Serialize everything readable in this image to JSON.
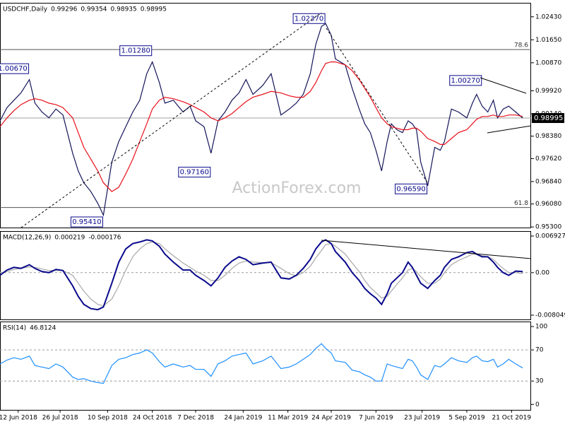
{
  "chart_data": [
    {
      "type": "line",
      "title": "USDCHF,Daily",
      "header_values": [
        0.99296,
        0.99354,
        0.98935,
        0.98995
      ],
      "watermark": "ActionForex.com",
      "xlim": [
        0,
        380
      ],
      "ylim": [
        0.9528,
        1.0288
      ],
      "yticks": [
        {
          "value": 1.0243,
          "label": "1.02430"
        },
        {
          "value": 1.0165,
          "label": "1.01650"
        },
        {
          "value": 1.0087,
          "label": "1.00870"
        },
        {
          "value": 0.9992,
          "label": "0.99920"
        },
        {
          "value": 0.9914,
          "label": "0.99140"
        },
        {
          "value": 0.9838,
          "label": "0.98380"
        },
        {
          "value": 0.9762,
          "label": "0.97620"
        },
        {
          "value": 0.9684,
          "label": "0.96840"
        },
        {
          "value": 0.9608,
          "label": "0.96080"
        },
        {
          "value": 0.953,
          "label": "0.95300"
        }
      ],
      "last_price": 0.98995,
      "fib_levels": [
        {
          "level": 78.6,
          "price": 1.0132
        },
        {
          "level": 61.8,
          "price": 0.9596
        }
      ],
      "annotations": [
        {
          "label": "1.00670",
          "value": 1.0067,
          "x": 21
        },
        {
          "label": "1.01280",
          "value": 1.0128,
          "x": 109
        },
        {
          "label": "1.02370",
          "value": 1.0237,
          "x": 233
        },
        {
          "label": "0.97160",
          "value": 0.9716,
          "x": 151
        },
        {
          "label": "0.95410",
          "value": 0.9541,
          "x": 74
        },
        {
          "label": "0.96590",
          "value": 0.9659,
          "x": 306
        },
        {
          "label": "1.00270",
          "value": 1.0027,
          "x": 345
        }
      ],
      "x": [
        0,
        5,
        10,
        15,
        21,
        25,
        30,
        35,
        40,
        45,
        52,
        56,
        60,
        65,
        70,
        74,
        80,
        85,
        90,
        95,
        100,
        105,
        109,
        114,
        118,
        124,
        131,
        136,
        140,
        146,
        151,
        156,
        161,
        166,
        171,
        176,
        181,
        188,
        194,
        201,
        207,
        212,
        217,
        222,
        226,
        230,
        233,
        237,
        240,
        247,
        252,
        257,
        261,
        265,
        269,
        273,
        277,
        280,
        284,
        288,
        292,
        295,
        298,
        301,
        306,
        311,
        315,
        318,
        323,
        328,
        334,
        338,
        341,
        345,
        349,
        353,
        356,
        360,
        364,
        369,
        374
      ],
      "series": [
        {
          "color": "#14145a",
          "values": [
            0.989,
            0.9935,
            0.996,
            0.9985,
            1.003,
            0.995,
            0.992,
            0.99,
            0.993,
            0.991,
            0.978,
            0.972,
            0.968,
            0.965,
            0.961,
            0.957,
            0.975,
            0.982,
            0.987,
            0.992,
            0.996,
            1.005,
            1.009,
            1.002,
            0.995,
            0.996,
            0.992,
            0.994,
            0.989,
            0.987,
            0.978,
            0.989,
            0.992,
            0.996,
            0.9985,
            1.003,
            0.998,
            1.001,
            1.005,
            0.991,
            0.993,
            0.995,
            0.998,
            1.005,
            1.015,
            1.021,
            1.022,
            1.018,
            1.01,
            1.008,
            1.0,
            0.993,
            0.988,
            0.985,
            0.979,
            0.972,
            0.982,
            0.988,
            0.986,
            0.985,
            0.989,
            0.988,
            0.986,
            0.975,
            0.967,
            0.98,
            0.979,
            0.982,
            0.993,
            0.992,
            0.99,
            0.995,
            0.998,
            0.994,
            0.992,
            0.996,
            0.99,
            0.993,
            0.994,
            0.992,
            0.98995
          ]
        },
        {
          "color": "#e8101a",
          "values": [
            0.987,
            0.99,
            0.9925,
            0.9945,
            0.996,
            0.9965,
            0.996,
            0.995,
            0.9945,
            0.9935,
            0.99,
            0.985,
            0.98,
            0.976,
            0.972,
            0.968,
            0.965,
            0.9665,
            0.971,
            0.976,
            0.982,
            0.988,
            0.993,
            0.996,
            0.997,
            0.9965,
            0.9955,
            0.9945,
            0.9935,
            0.992,
            0.99,
            0.989,
            0.99,
            0.9915,
            0.9935,
            0.9955,
            0.997,
            0.998,
            0.999,
            0.9985,
            0.9975,
            0.997,
            0.997,
            0.999,
            1.002,
            1.006,
            1.0085,
            1.009,
            1.009,
            1.008,
            1.006,
            1.003,
            1.0,
            0.997,
            0.9935,
            0.99,
            0.988,
            0.987,
            0.9865,
            0.986,
            0.986,
            0.9865,
            0.9865,
            0.9855,
            0.983,
            0.982,
            0.981,
            0.981,
            0.983,
            0.985,
            0.986,
            0.988,
            0.9895,
            0.9905,
            0.9905,
            0.991,
            0.9905,
            0.9905,
            0.991,
            0.991,
            0.9905
          ]
        }
      ]
    },
    {
      "type": "line",
      "title": "MACD(12,26,9)",
      "header_values": [
        0.000219,
        -0.000176
      ],
      "xlim": [
        0,
        380
      ],
      "ylim": [
        -0.00885,
        0.00773
      ],
      "yticks": [
        0.006927,
        {
          "value": 0,
          "label": "0.00"
        },
        -0.008049
      ],
      "levels": [
        0
      ],
      "x": [
        0,
        5,
        10,
        15,
        21,
        25,
        30,
        35,
        40,
        45,
        52,
        56,
        60,
        65,
        70,
        74,
        80,
        85,
        90,
        95,
        100,
        105,
        109,
        114,
        118,
        124,
        131,
        136,
        140,
        146,
        151,
        156,
        161,
        166,
        171,
        176,
        181,
        188,
        194,
        201,
        207,
        212,
        217,
        222,
        226,
        230,
        233,
        237,
        240,
        247,
        252,
        257,
        261,
        265,
        269,
        273,
        277,
        280,
        284,
        288,
        292,
        295,
        298,
        301,
        306,
        311,
        315,
        318,
        323,
        328,
        334,
        338,
        341,
        345,
        349,
        353,
        356,
        360,
        364,
        369,
        374
      ],
      "series": [
        {
          "color": "#a8a8a8",
          "values": [
            0.0,
            0.0002,
            0.0006,
            0.0008,
            0.0011,
            0.001,
            0.0007,
            0.0004,
            0.0004,
            0.0004,
            -0.0005,
            -0.002,
            -0.0035,
            -0.005,
            -0.006,
            -0.0063,
            -0.005,
            -0.0025,
            0.0005,
            0.003,
            0.0045,
            0.0055,
            0.0058,
            0.0055,
            0.0045,
            0.0032,
            0.0018,
            0.001,
            0.0003,
            -0.0005,
            -0.0015,
            -0.0015,
            -0.0005,
            0.0008,
            0.0018,
            0.0022,
            0.002,
            0.0019,
            0.0019,
            0.0008,
            -0.0002,
            -0.0006,
            0.0,
            0.0012,
            0.0028,
            0.0042,
            0.0053,
            0.0055,
            0.005,
            0.0035,
            0.0018,
            0.0002,
            -0.0015,
            -0.0028,
            -0.0038,
            -0.0048,
            -0.0045,
            -0.0035,
            -0.0022,
            -0.001,
            0.0005,
            0.0008,
            0.0002,
            -0.0008,
            -0.002,
            -0.002,
            -0.0012,
            0.0,
            0.0015,
            0.0023,
            0.003,
            0.0035,
            0.0035,
            0.0032,
            0.003,
            0.0025,
            0.0017,
            0.0008,
            0.0,
            0.0,
            -0.000176
          ]
        },
        {
          "color": "#0a0a8c",
          "values": [
            -0.0005,
            0.0005,
            0.001,
            0.0008,
            0.0015,
            0.0008,
            0.0002,
            0.0,
            0.0006,
            0.0004,
            -0.0025,
            -0.0045,
            -0.006,
            -0.0068,
            -0.007,
            -0.0065,
            -0.002,
            0.002,
            0.0045,
            0.0055,
            0.0058,
            0.0062,
            0.006,
            0.005,
            0.0035,
            0.002,
            0.0005,
            0.0005,
            -0.0005,
            -0.0015,
            -0.0025,
            -0.001,
            0.001,
            0.0022,
            0.003,
            0.0025,
            0.0015,
            0.0018,
            0.002,
            -0.001,
            -0.0012,
            -0.0005,
            0.0008,
            0.0025,
            0.0045,
            0.0058,
            0.0062,
            0.0055,
            0.004,
            0.002,
            0.0,
            -0.0015,
            -0.003,
            -0.004,
            -0.0048,
            -0.006,
            -0.004,
            -0.002,
            -0.001,
            0.0,
            0.002,
            0.001,
            -0.0005,
            -0.002,
            -0.003,
            -0.0015,
            -0.0005,
            0.001,
            0.0025,
            0.003,
            0.0038,
            0.004,
            0.0035,
            0.003,
            0.003,
            0.002,
            0.001,
            0.0,
            -0.0005,
            0.0003,
            0.000219
          ]
        }
      ]
    },
    {
      "type": "line",
      "title": "RSI(14)",
      "header_values": [
        46.8124
      ],
      "xlim": [
        0,
        380
      ],
      "ylim": [
        -7,
        105.5
      ],
      "yticks": [
        100,
        70,
        30,
        0
      ],
      "levels": [
        70,
        30
      ],
      "xticks": [
        {
          "value": 13,
          "label": "12 Jun 2018"
        },
        {
          "value": 43,
          "label": "26 Jul 2018"
        },
        {
          "value": 77,
          "label": "10 Sep 2018"
        },
        {
          "value": 109,
          "label": "24 Oct 2018"
        },
        {
          "value": 140,
          "label": "7 Dec 2018"
        },
        {
          "value": 174,
          "label": "24 Jan 2019"
        },
        {
          "value": 206,
          "label": "11 Mar 2019"
        },
        {
          "value": 237,
          "label": "24 Apr 2019"
        },
        {
          "value": 269,
          "label": "7 Jun 2019"
        },
        {
          "value": 302,
          "label": "23 Jul 2019"
        },
        {
          "value": 334,
          "label": "5 Sep 2019"
        },
        {
          "value": 366,
          "label": "21 Oct 2019"
        }
      ],
      "x": [
        0,
        5,
        10,
        15,
        21,
        25,
        30,
        35,
        40,
        45,
        52,
        56,
        60,
        65,
        70,
        74,
        80,
        85,
        90,
        95,
        100,
        105,
        109,
        114,
        118,
        124,
        131,
        136,
        140,
        146,
        151,
        156,
        161,
        166,
        171,
        176,
        181,
        188,
        194,
        201,
        207,
        212,
        217,
        222,
        226,
        230,
        233,
        237,
        240,
        247,
        252,
        257,
        261,
        265,
        269,
        273,
        277,
        280,
        284,
        288,
        292,
        295,
        298,
        301,
        306,
        311,
        315,
        318,
        323,
        328,
        334,
        338,
        341,
        345,
        349,
        353,
        356,
        360,
        364,
        369,
        374
      ],
      "series": [
        {
          "color": "#1e90ff",
          "values": [
            52,
            57,
            60,
            58,
            62,
            50,
            48,
            46,
            52,
            48,
            35,
            32,
            33,
            30,
            28,
            27,
            50,
            58,
            60,
            64,
            66,
            70,
            66,
            55,
            48,
            52,
            48,
            50,
            45,
            45,
            36,
            52,
            56,
            62,
            64,
            66,
            52,
            56,
            62,
            46,
            48,
            52,
            58,
            64,
            72,
            78,
            72,
            66,
            56,
            54,
            44,
            42,
            38,
            35,
            30,
            30,
            52,
            50,
            48,
            46,
            58,
            56,
            48,
            38,
            32,
            50,
            48,
            52,
            60,
            56,
            54,
            60,
            62,
            56,
            55,
            58,
            48,
            52,
            58,
            52,
            46.8124
          ]
        }
      ]
    }
  ]
}
